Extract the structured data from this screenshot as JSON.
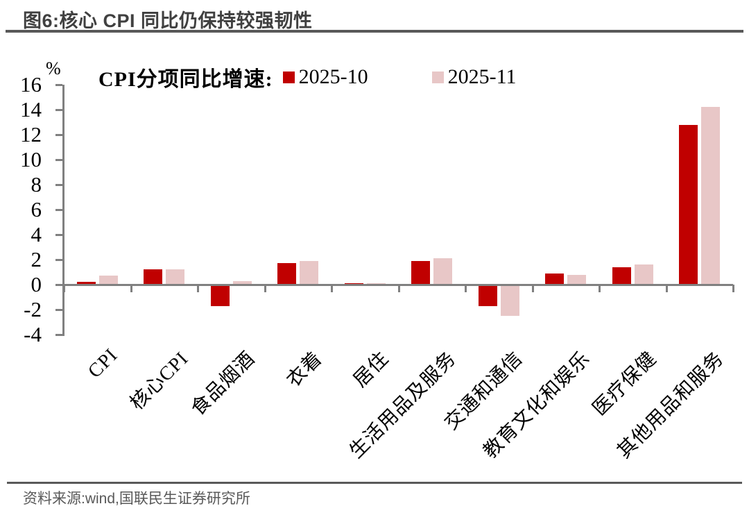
{
  "page": {
    "title": "图6:核心 CPI 同比仍保持较强韧性",
    "source": "资料来源:wind,国联民生证券研究所"
  },
  "colors": {
    "series_2025_10": "#C00000",
    "series_2025_11": "#E8C7C7",
    "axis_gray": "#808080",
    "rule_gray": "#595959",
    "title_gray": "#404040"
  },
  "chart_data": {
    "type": "bar",
    "title": "CPI分项同比增速:",
    "unit_label": "%",
    "categories": [
      "CPI",
      "核心CPI",
      "食品烟酒",
      "衣着",
      "居住",
      "生活用品及服务",
      "交通和通信",
      "教育文化和娱乐",
      "医疗保健",
      "其他用品和服务"
    ],
    "series": [
      {
        "name": "2025-10",
        "color": "#C00000",
        "values": [
          0.2,
          1.2,
          -1.6,
          1.7,
          0.1,
          1.9,
          -1.6,
          0.9,
          1.4,
          12.8
        ]
      },
      {
        "name": "2025-11",
        "color": "#E8C7C7",
        "values": [
          0.7,
          1.2,
          0.3,
          1.9,
          0.1,
          2.1,
          -2.4,
          0.8,
          1.6,
          14.2
        ]
      }
    ],
    "ylim": [
      -4,
      16
    ],
    "ytick_step": 2,
    "grid": false,
    "legend_position": "top"
  }
}
